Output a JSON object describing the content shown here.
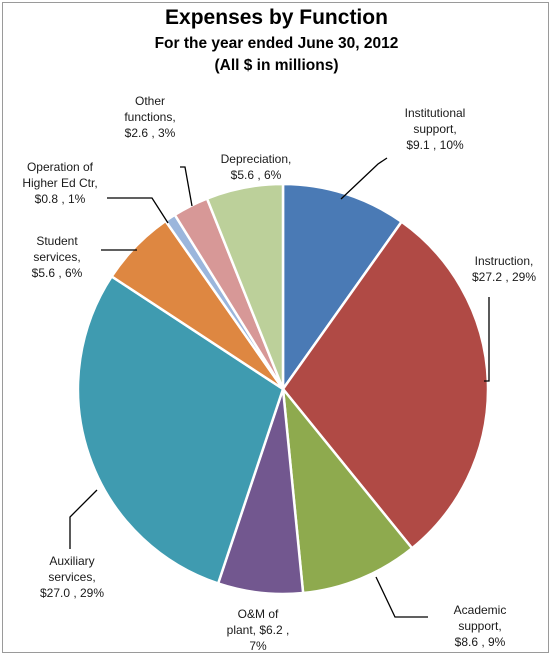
{
  "chart_data": {
    "type": "pie",
    "title": "Expenses by Function",
    "subtitle": [
      "For the year ended June 30, 2012",
      "(All $ in millions)"
    ],
    "slices": [
      {
        "label": "Institutional support",
        "value": 9.1,
        "percent": "10%",
        "color": "#4a7ab5",
        "text": [
          "Institutional",
          "support,",
          "$9.1 , 10%"
        ]
      },
      {
        "label": "Instruction",
        "value": 27.2,
        "percent": "29%",
        "color": "#b04a45",
        "text": [
          "Instruction,",
          "$27.2 , 29%"
        ]
      },
      {
        "label": "Academic support",
        "value": 8.6,
        "percent": "9%",
        "color": "#8eaa4e",
        "text": [
          "Academic",
          "support,",
          "$8.6 , 9%"
        ]
      },
      {
        "label": "O&M of plant",
        "value": 6.2,
        "percent": "7%",
        "color": "#72578f",
        "text": [
          "O&M of",
          "plant,  $6.2 ,",
          "7%"
        ]
      },
      {
        "label": "Auxiliary services",
        "value": 27.0,
        "percent": "29%",
        "color": "#3f9bb0",
        "text": [
          "Auxiliary",
          "services,",
          "$27.0 , 29%"
        ]
      },
      {
        "label": "Student services",
        "value": 5.6,
        "percent": "6%",
        "color": "#de8741",
        "text": [
          "Student",
          "services,",
          "$5.6 , 6%"
        ]
      },
      {
        "label": "Operation of Higher Ed Ctr",
        "value": 0.8,
        "percent": "1%",
        "color": "#9bb6dc",
        "text": [
          "Operation of",
          "Higher Ed Ctr,",
          "$0.8 , 1%"
        ]
      },
      {
        "label": "Other functions",
        "value": 2.6,
        "percent": "3%",
        "color": "#d79897",
        "text": [
          "Other",
          "functions,",
          "$2.6 , 3%"
        ]
      },
      {
        "label": "Depreciation",
        "value": 5.6,
        "percent": "6%",
        "color": "#bcd09a",
        "text": [
          "Depreciation,",
          "$5.6 , 6%"
        ]
      }
    ]
  }
}
